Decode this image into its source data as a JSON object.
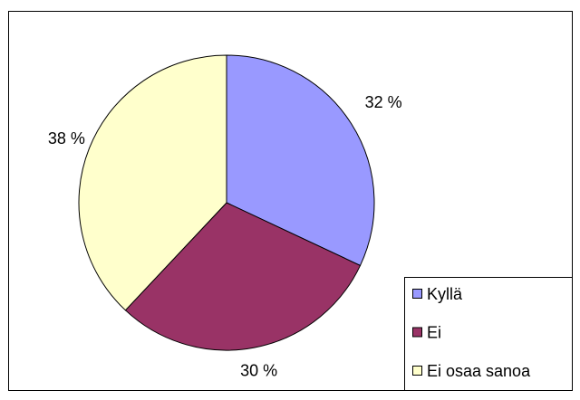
{
  "chart_data": {
    "type": "pie",
    "categories": [
      "Kyllä",
      "Ei",
      "Ei osaa sanoa"
    ],
    "values": [
      32,
      30,
      38
    ],
    "value_labels": [
      "32 %",
      "30 %",
      "38 %"
    ],
    "colors": [
      "#9999ff",
      "#993366",
      "#ffffcc"
    ],
    "legend": "right"
  }
}
